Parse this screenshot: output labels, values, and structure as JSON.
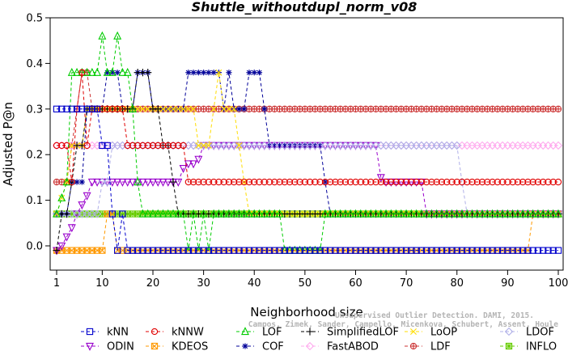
{
  "chart_data": {
    "type": "line",
    "title": "Shuttle_withoutdupl_norm_v08",
    "xlabel": "Neighborhood size",
    "ylabel": "Adjusted P@n",
    "xlim": [
      1,
      100
    ],
    "ylim": [
      -0.03,
      0.5
    ],
    "xticks": [
      1,
      10,
      20,
      30,
      40,
      50,
      60,
      70,
      80,
      90,
      100
    ],
    "yticks": [
      0.0,
      0.1,
      0.2,
      0.3,
      0.4,
      0.5
    ],
    "xtick_labels": [
      "1",
      "10",
      "20",
      "30",
      "40",
      "50",
      "60",
      "70",
      "80",
      "90",
      "100"
    ],
    "ytick_labels": [
      "0.0",
      "0.1",
      "0.2",
      "0.3",
      "0.4",
      "0.5"
    ],
    "grid": false,
    "legend_position": "bottom",
    "watermark": [
      "Unsupervised Outlier Detection. DAMI, 2015.",
      "Campos, Zimek, Sander, Campello, Micenkova, Schubert, Assent, Houle"
    ],
    "series": [
      {
        "name": "kNN",
        "color": "#0000cc",
        "marker": "square",
        "points": [
          [
            1,
            0.3
          ],
          [
            9,
            0.3
          ],
          [
            10,
            0.22
          ],
          [
            11,
            0.22
          ],
          [
            12,
            0.07
          ],
          [
            13,
            -0.01
          ],
          [
            14,
            0.07
          ],
          [
            15,
            -0.01
          ],
          [
            100,
            -0.01
          ]
        ]
      },
      {
        "name": "kNNW",
        "color": "#e00000",
        "marker": "circle",
        "points": [
          [
            1,
            0.22
          ],
          [
            3,
            0.22
          ],
          [
            4,
            0.14
          ],
          [
            5,
            0.3
          ],
          [
            6,
            0.38
          ],
          [
            7,
            0.22
          ],
          [
            8,
            0.3
          ],
          [
            14,
            0.3
          ],
          [
            15,
            0.22
          ],
          [
            26,
            0.22
          ],
          [
            27,
            0.14
          ],
          [
            100,
            0.14
          ]
        ]
      },
      {
        "name": "LOF",
        "color": "#00cc00",
        "marker": "triangle",
        "points": [
          [
            1,
            0.07
          ],
          [
            3,
            0.14
          ],
          [
            4,
            0.38
          ],
          [
            9,
            0.38
          ],
          [
            10,
            0.46
          ],
          [
            11,
            0.38
          ],
          [
            12,
            0.38
          ],
          [
            13,
            0.46
          ],
          [
            14,
            0.38
          ],
          [
            15,
            0.38
          ],
          [
            16,
            0.3
          ],
          [
            17,
            0.14
          ],
          [
            18,
            0.07
          ],
          [
            26,
            0.07
          ],
          [
            27,
            -0.01
          ],
          [
            28,
            0.07
          ],
          [
            29,
            -0.01
          ],
          [
            30,
            0.07
          ],
          [
            31,
            -0.01
          ],
          [
            32,
            0.07
          ],
          [
            45,
            0.07
          ],
          [
            46,
            -0.01
          ],
          [
            53,
            -0.01
          ],
          [
            54,
            0.07
          ],
          [
            100,
            0.07
          ]
        ]
      },
      {
        "name": "SimplifiedLOF",
        "color": "#000000",
        "marker": "plus",
        "points": [
          [
            1,
            -0.01
          ],
          [
            2,
            0.07
          ],
          [
            3,
            0.07
          ],
          [
            4,
            0.14
          ],
          [
            5,
            0.22
          ],
          [
            6,
            0.22
          ],
          [
            7,
            0.3
          ],
          [
            16,
            0.3
          ],
          [
            17,
            0.38
          ],
          [
            19,
            0.38
          ],
          [
            20,
            0.3
          ],
          [
            21,
            0.3
          ],
          [
            22,
            0.22
          ],
          [
            23,
            0.22
          ],
          [
            24,
            0.14
          ],
          [
            25,
            0.07
          ],
          [
            100,
            0.07
          ]
        ]
      },
      {
        "name": "LoOP",
        "color": "#ffdd00",
        "marker": "cross",
        "points": [
          [
            1,
            0.07
          ],
          [
            3,
            0.14
          ],
          [
            4,
            0.22
          ],
          [
            6,
            0.22
          ],
          [
            7,
            0.3
          ],
          [
            16,
            0.3
          ],
          [
            18,
            0.3
          ],
          [
            28,
            0.3
          ],
          [
            29,
            0.22
          ],
          [
            31,
            0.22
          ],
          [
            32,
            0.3
          ],
          [
            33,
            0.38
          ],
          [
            34,
            0.3
          ],
          [
            36,
            0.3
          ],
          [
            37,
            0.22
          ],
          [
            38,
            0.14
          ],
          [
            39,
            0.07
          ],
          [
            100,
            0.07
          ]
        ]
      },
      {
        "name": "LDOF",
        "color": "#b0b0e8",
        "marker": "diamond",
        "points": [
          [
            1,
            0.07
          ],
          [
            3,
            0.07
          ],
          [
            4,
            0.07
          ],
          [
            5,
            0.07
          ],
          [
            6,
            0.07
          ],
          [
            7,
            0.07
          ],
          [
            8,
            0.07
          ],
          [
            9,
            0.07
          ],
          [
            10,
            0.14
          ],
          [
            11,
            0.14
          ],
          [
            12,
            0.22
          ],
          [
            16,
            0.22
          ],
          [
            17,
            0.22
          ],
          [
            80,
            0.22
          ],
          [
            81,
            0.14
          ],
          [
            82,
            0.07
          ],
          [
            100,
            0.07
          ]
        ]
      },
      {
        "name": "ODIN",
        "color": "#9900cc",
        "marker": "triangle-down",
        "points": [
          [
            1,
            -0.01
          ],
          [
            2,
            0.0
          ],
          [
            3,
            0.02
          ],
          [
            4,
            0.04
          ],
          [
            5,
            0.07
          ],
          [
            6,
            0.09
          ],
          [
            7,
            0.11
          ],
          [
            8,
            0.14
          ],
          [
            25,
            0.14
          ],
          [
            26,
            0.17
          ],
          [
            27,
            0.18
          ],
          [
            28,
            0.18
          ],
          [
            29,
            0.19
          ],
          [
            30,
            0.22
          ],
          [
            64,
            0.22
          ],
          [
            65,
            0.15
          ],
          [
            66,
            0.14
          ],
          [
            73,
            0.14
          ],
          [
            74,
            0.07
          ],
          [
            100,
            0.07
          ]
        ]
      },
      {
        "name": "KDEOS",
        "color": "#ff9900",
        "marker": "square-x",
        "points": [
          [
            1,
            -0.01
          ],
          [
            10,
            -0.01
          ],
          [
            11,
            0.07
          ],
          [
            12,
            0.07
          ],
          [
            13,
            -0.01
          ],
          [
            94,
            -0.01
          ],
          [
            95,
            0.07
          ],
          [
            100,
            0.07
          ]
        ]
      },
      {
        "name": "COF",
        "color": "#000099",
        "marker": "asterisk",
        "points": [
          [
            1,
            0.07
          ],
          [
            3,
            0.07
          ],
          [
            4,
            0.14
          ],
          [
            6,
            0.14
          ],
          [
            7,
            0.3
          ],
          [
            10,
            0.3
          ],
          [
            11,
            0.38
          ],
          [
            13,
            0.38
          ],
          [
            14,
            0.3
          ],
          [
            16,
            0.3
          ],
          [
            17,
            0.38
          ],
          [
            19,
            0.38
          ],
          [
            20,
            0.3
          ],
          [
            26,
            0.3
          ],
          [
            27,
            0.38
          ],
          [
            33,
            0.38
          ],
          [
            34,
            0.3
          ],
          [
            35,
            0.38
          ],
          [
            36,
            0.3
          ],
          [
            38,
            0.3
          ],
          [
            39,
            0.38
          ],
          [
            41,
            0.38
          ],
          [
            42,
            0.3
          ],
          [
            43,
            0.22
          ],
          [
            53,
            0.22
          ],
          [
            54,
            0.14
          ],
          [
            55,
            0.07
          ],
          [
            100,
            0.07
          ]
        ]
      },
      {
        "name": "FastABOD",
        "color": "#ffaaee",
        "marker": "diamond",
        "points": [
          [
            1,
            0.22
          ],
          [
            2,
            0.22
          ],
          [
            100,
            0.22
          ]
        ]
      },
      {
        "name": "LDF",
        "color": "#cc3333",
        "marker": "circle-plus",
        "points": [
          [
            1,
            0.14
          ],
          [
            3,
            0.14
          ],
          [
            4,
            0.22
          ],
          [
            5,
            0.3
          ],
          [
            6,
            0.38
          ],
          [
            7,
            0.38
          ],
          [
            8,
            0.3
          ],
          [
            100,
            0.3
          ]
        ]
      },
      {
        "name": "INFLO",
        "color": "#66cc00",
        "marker": "square-star",
        "points": [
          [
            1,
            0.07
          ],
          [
            100,
            0.07
          ]
        ]
      }
    ]
  }
}
